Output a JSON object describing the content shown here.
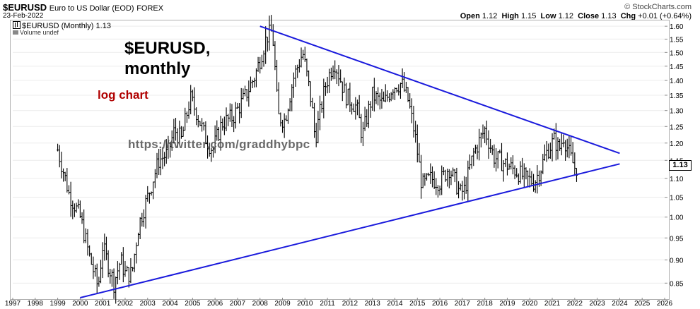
{
  "header": {
    "symbol": "$EURUSD",
    "description": "Euro to US Dollar (EOD)",
    "exchange": "FOREX",
    "date": "23-Feb-2022",
    "brand": "© StockCharts.com",
    "ohlc": {
      "open_label": "Open",
      "open": "1.12",
      "high_label": "High",
      "high": "1.15",
      "low_label": "Low",
      "low": "1.12",
      "close_label": "Close",
      "close": "1.13",
      "chg_label": "Chg",
      "chg": "+0.01 (+0.64%)"
    }
  },
  "legend": {
    "series": "$EURUSD (Monthly) 1.13",
    "volume": "Volume undef"
  },
  "annotations": {
    "title_line1": "$EURUSD,",
    "title_line2": "monthly",
    "scale_note": "log chart",
    "watermark": "https://twitter.com/graddhybpc"
  },
  "colors": {
    "bars": "#000000",
    "trendlines": "#1a1adc",
    "scale_note": "#b00000"
  },
  "last_price_tag": "1.13",
  "chart_data": {
    "type": "ohlc-bar",
    "scale": "log",
    "title": "$EURUSD (Monthly)",
    "x_range": [
      1997,
      2026
    ],
    "y_range": [
      0.82,
      1.62
    ],
    "x_ticks": [
      "1997",
      "1998",
      "1999",
      "2000",
      "2001",
      "2002",
      "2003",
      "2004",
      "2005",
      "2006",
      "2007",
      "2008",
      "2009",
      "2010",
      "2011",
      "2012",
      "2013",
      "2014",
      "2015",
      "2016",
      "2017",
      "2018",
      "2019",
      "2020",
      "2021",
      "2022",
      "2023",
      "2024",
      "2025",
      "2026"
    ],
    "y_ticks": [
      "0.85",
      "0.90",
      "0.95",
      "1.00",
      "1.05",
      "1.10",
      "1.15",
      "1.20",
      "1.25",
      "1.30",
      "1.35",
      "1.40",
      "1.45",
      "1.50",
      "1.55",
      "1.60"
    ],
    "price_path": [
      [
        1999.0,
        1.18
      ],
      [
        1999.5,
        1.06
      ],
      [
        2000.0,
        1.0
      ],
      [
        2000.4,
        0.91
      ],
      [
        2000.8,
        0.84
      ],
      [
        2001.0,
        0.93
      ],
      [
        2001.5,
        0.85
      ],
      [
        2001.8,
        0.9
      ],
      [
        2002.0,
        0.87
      ],
      [
        2002.3,
        0.87
      ],
      [
        2002.6,
        0.98
      ],
      [
        2003.0,
        1.05
      ],
      [
        2003.5,
        1.15
      ],
      [
        2003.9,
        1.17
      ],
      [
        2004.2,
        1.24
      ],
      [
        2004.5,
        1.21
      ],
      [
        2004.9,
        1.34
      ],
      [
        2005.2,
        1.29
      ],
      [
        2005.6,
        1.21
      ],
      [
        2005.9,
        1.18
      ],
      [
        2006.3,
        1.26
      ],
      [
        2006.8,
        1.28
      ],
      [
        2007.3,
        1.34
      ],
      [
        2007.8,
        1.42
      ],
      [
        2008.3,
        1.56
      ],
      [
        2008.55,
        1.58
      ],
      [
        2008.8,
        1.28
      ],
      [
        2009.1,
        1.27
      ],
      [
        2009.5,
        1.41
      ],
      [
        2009.9,
        1.5
      ],
      [
        2010.3,
        1.32
      ],
      [
        2010.45,
        1.21
      ],
      [
        2010.9,
        1.38
      ],
      [
        2011.3,
        1.47
      ],
      [
        2011.8,
        1.35
      ],
      [
        2012.3,
        1.31
      ],
      [
        2012.55,
        1.22
      ],
      [
        2013.0,
        1.35
      ],
      [
        2013.5,
        1.32
      ],
      [
        2013.9,
        1.38
      ],
      [
        2014.3,
        1.39
      ],
      [
        2014.6,
        1.33
      ],
      [
        2014.9,
        1.22
      ],
      [
        2015.2,
        1.08
      ],
      [
        2015.6,
        1.1
      ],
      [
        2016.0,
        1.09
      ],
      [
        2016.4,
        1.13
      ],
      [
        2016.9,
        1.06
      ],
      [
        2017.1,
        1.07
      ],
      [
        2017.5,
        1.17
      ],
      [
        2018.0,
        1.24
      ],
      [
        2018.4,
        1.16
      ],
      [
        2018.9,
        1.14
      ],
      [
        2019.4,
        1.12
      ],
      [
        2019.8,
        1.1
      ],
      [
        2020.2,
        1.09
      ],
      [
        2020.5,
        1.13
      ],
      [
        2020.8,
        1.18
      ],
      [
        2021.1,
        1.21
      ],
      [
        2021.3,
        1.18
      ],
      [
        2021.5,
        1.22
      ],
      [
        2021.8,
        1.16
      ],
      [
        2022.0,
        1.13
      ],
      [
        2022.15,
        1.13
      ]
    ],
    "trendlines": [
      {
        "name": "upper",
        "from": [
          2008.0,
          1.6
        ],
        "to": [
          2024.0,
          1.17
        ]
      },
      {
        "name": "lower",
        "from": [
          2000.0,
          0.82
        ],
        "to": [
          2024.0,
          1.14
        ]
      }
    ]
  }
}
